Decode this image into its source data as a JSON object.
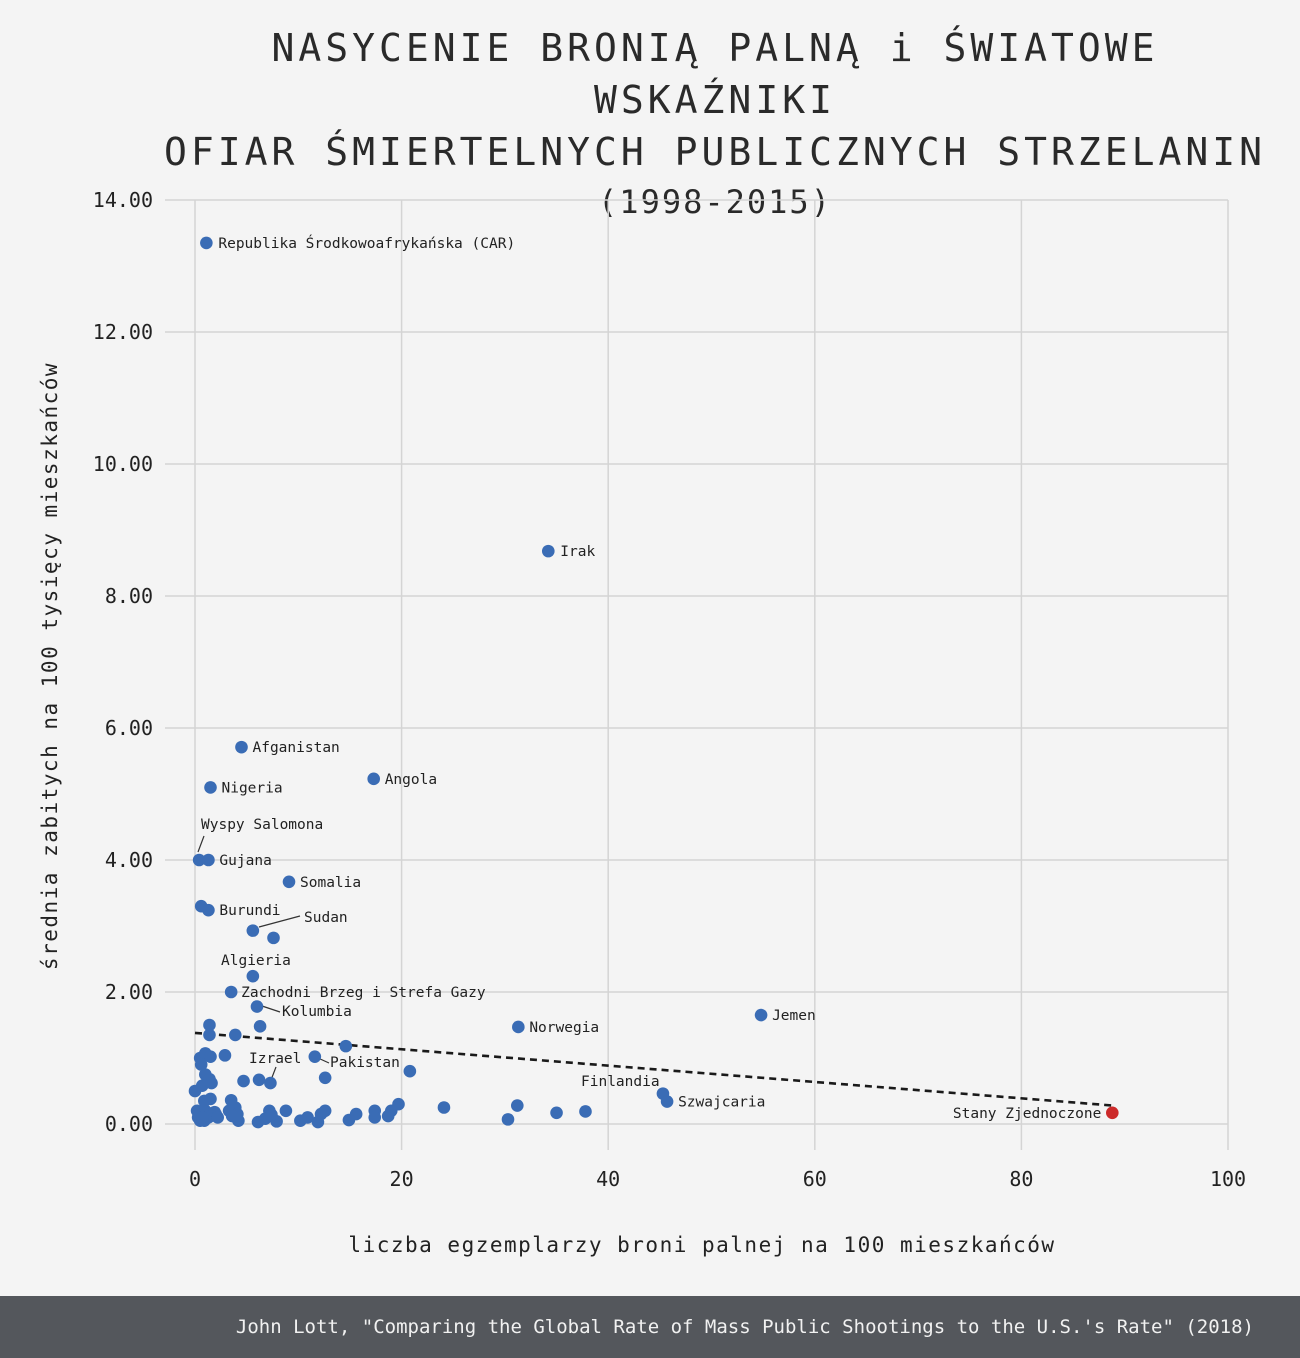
{
  "header": {
    "title_line1": "NASYCENIE BRONIĄ PALNĄ i ŚWIATOWE WSKAŹNIKI",
    "title_line2": "OFIAR ŚMIERTELNYCH PUBLICZNYCH STRZELANIN",
    "title_line3": "(1998-2015)"
  },
  "footer": {
    "source": "John Lott, \"Comparing the Global Rate of Mass Public Shootings to the U.S.'s Rate\" (2018)"
  },
  "colors": {
    "point": "#3a6cb5",
    "highlight": "#cc2a2a",
    "grid": "#d4d4d4",
    "footer_bg": "#54575c",
    "background": "#f4f4f4"
  },
  "chart_data": {
    "type": "scatter",
    "title": "NASYCENIE BRONIĄ PALNĄ i ŚWIATOWE WSKAŹNIKI OFIAR ŚMIERTELNYCH PUBLICZNYCH STRZELANIN (1998-2015)",
    "xlabel": "liczba egzemplarzy broni palnej na 100 mieszkańców",
    "ylabel": "średnia zabitych na 100 tysięcy mieszkańców",
    "xlim": [
      0,
      100
    ],
    "ylim": [
      0,
      14
    ],
    "x_ticks": [
      "0",
      "20",
      "40",
      "60",
      "80",
      "100"
    ],
    "y_ticks": [
      "0.00",
      "2.00",
      "4.00",
      "6.00",
      "8.00",
      "10.00",
      "12.00",
      "14.00"
    ],
    "grid": true,
    "trendline": {
      "style": "dashed",
      "x": [
        0,
        88.8
      ],
      "y": [
        1.38,
        0.28
      ]
    },
    "labeled_points": [
      {
        "label": "Republika Środkowoafrykańska (CAR)",
        "x": 1.1,
        "y": 13.35
      },
      {
        "label": "Irak",
        "x": 34.2,
        "y": 8.68
      },
      {
        "label": "Afganistan",
        "x": 4.5,
        "y": 5.71
      },
      {
        "label": "Angola",
        "x": 17.3,
        "y": 5.23
      },
      {
        "label": "Nigeria",
        "x": 1.5,
        "y": 5.1
      },
      {
        "label": "Wyspy Salomona",
        "x": 0.4,
        "y": 4.0
      },
      {
        "label": "Gujana",
        "x": 1.3,
        "y": 4.0
      },
      {
        "label": "Somalia",
        "x": 9.1,
        "y": 3.67
      },
      {
        "label": "Burundi",
        "x": 1.3,
        "y": 3.24
      },
      {
        "label": "Sudan",
        "x": 5.6,
        "y": 2.93
      },
      {
        "label": "Algieria",
        "x": 5.6,
        "y": 2.24
      },
      {
        "label": "Zachodni Brzeg i Strefa Gazy",
        "x": 3.5,
        "y": 2.0
      },
      {
        "label": "Kolumbia",
        "x": 6.0,
        "y": 1.78
      },
      {
        "label": "Norwegia",
        "x": 31.3,
        "y": 1.47
      },
      {
        "label": "Jemen",
        "x": 54.8,
        "y": 1.65
      },
      {
        "label": "Pakistan",
        "x": 11.6,
        "y": 1.02
      },
      {
        "label": "Izrael",
        "x": 7.3,
        "y": 0.62
      },
      {
        "label": "Finlandia",
        "x": 45.3,
        "y": 0.46
      },
      {
        "label": "Szwajcaria",
        "x": 45.7,
        "y": 0.34
      },
      {
        "label": "Stany Zjednoczone",
        "x": 88.8,
        "y": 0.17
      }
    ],
    "unlabeled_points": [
      [
        7.6,
        2.82
      ],
      [
        0.6,
        3.3
      ],
      [
        1.4,
        1.5
      ],
      [
        1.4,
        1.35
      ],
      [
        3.9,
        1.35
      ],
      [
        6.3,
        1.48
      ],
      [
        14.6,
        1.18
      ],
      [
        0.5,
        1.0
      ],
      [
        1.0,
        1.07
      ],
      [
        1.5,
        1.02
      ],
      [
        2.9,
        1.04
      ],
      [
        0.6,
        0.9
      ],
      [
        1.0,
        0.75
      ],
      [
        1.4,
        0.68
      ],
      [
        1.6,
        0.62
      ],
      [
        0.7,
        0.58
      ],
      [
        4.7,
        0.65
      ],
      [
        6.2,
        0.67
      ],
      [
        12.6,
        0.7
      ],
      [
        20.8,
        0.8
      ],
      [
        0.0,
        0.5
      ],
      [
        1.5,
        0.38
      ],
      [
        0.9,
        0.35
      ],
      [
        3.5,
        0.36
      ],
      [
        3.9,
        0.25
      ],
      [
        0.2,
        0.2
      ],
      [
        1.0,
        0.2
      ],
      [
        1.9,
        0.18
      ],
      [
        2.0,
        0.15
      ],
      [
        3.3,
        0.2
      ],
      [
        4.1,
        0.15
      ],
      [
        7.2,
        0.2
      ],
      [
        8.8,
        0.2
      ],
      [
        12.6,
        0.2
      ],
      [
        12.2,
        0.15
      ],
      [
        15.6,
        0.15
      ],
      [
        17.4,
        0.2
      ],
      [
        17.4,
        0.1
      ],
      [
        19.0,
        0.2
      ],
      [
        19.7,
        0.3
      ],
      [
        24.1,
        0.25
      ],
      [
        31.2,
        0.28
      ],
      [
        35.0,
        0.17
      ],
      [
        37.8,
        0.19
      ],
      [
        0.5,
        0.05
      ],
      [
        0.9,
        0.05
      ],
      [
        1.3,
        0.1
      ],
      [
        4.2,
        0.05
      ],
      [
        6.1,
        0.03
      ],
      [
        7.9,
        0.04
      ],
      [
        10.2,
        0.05
      ],
      [
        10.9,
        0.1
      ],
      [
        11.9,
        0.03
      ],
      [
        14.9,
        0.06
      ],
      [
        18.7,
        0.12
      ],
      [
        30.3,
        0.07
      ],
      [
        0.3,
        0.1
      ],
      [
        0.7,
        0.1
      ],
      [
        2.2,
        0.1
      ],
      [
        3.6,
        0.12
      ],
      [
        6.8,
        0.08
      ],
      [
        7.4,
        0.14
      ]
    ]
  }
}
